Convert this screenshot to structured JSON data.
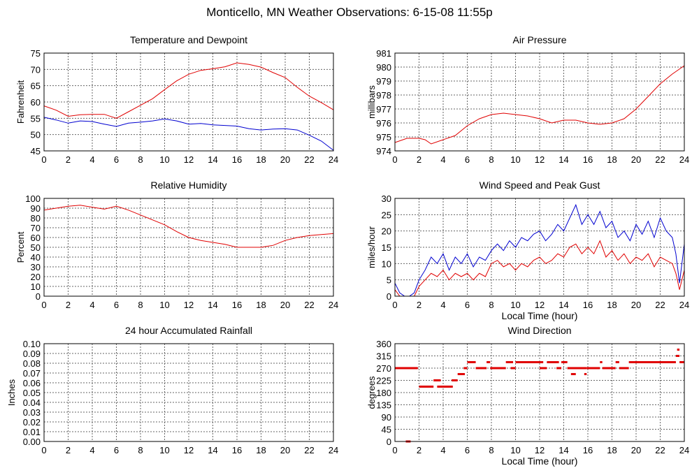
{
  "title": "Monticello, MN Weather Observations: 6-15-08 11:55p",
  "chart_data": [
    {
      "id": "temp",
      "type": "line",
      "title": "Temperature and Dewpoint",
      "xlabel": "",
      "ylabel": "Fahrenheit",
      "xlim": [
        0,
        24
      ],
      "ylim": [
        45,
        75
      ],
      "xticks": [
        "0",
        "2",
        "4",
        "6",
        "8",
        "10",
        "12",
        "14",
        "16",
        "18",
        "20",
        "22",
        "24"
      ],
      "yticks": [
        "45",
        "50",
        "55",
        "60",
        "65",
        "70",
        "75"
      ],
      "grid": true,
      "series": [
        {
          "color": "#e00000",
          "x": [
            0,
            1,
            2,
            3,
            4,
            5,
            6,
            7,
            8,
            9,
            10,
            11,
            12,
            13,
            14,
            15,
            16,
            17,
            18,
            19,
            20,
            21,
            22,
            23,
            24
          ],
          "y": [
            58.8,
            57.5,
            55.6,
            56.1,
            56.2,
            56.2,
            55.0,
            57.0,
            59.0,
            61.0,
            63.8,
            66.5,
            68.5,
            69.7,
            70.2,
            70.8,
            72.0,
            71.5,
            70.7,
            69.0,
            67.5,
            64.5,
            61.8,
            59.8,
            57.6
          ]
        },
        {
          "color": "#0000d0",
          "x": [
            0,
            1,
            2,
            3,
            4,
            5,
            6,
            7,
            8,
            9,
            10,
            11,
            12,
            13,
            14,
            15,
            16,
            17,
            18,
            19,
            20,
            21,
            22,
            23,
            24
          ],
          "y": [
            55.3,
            54.5,
            53.5,
            54.2,
            54.0,
            53.2,
            52.5,
            53.5,
            53.8,
            54.2,
            54.8,
            54.2,
            53.2,
            53.4,
            53.0,
            52.8,
            52.6,
            51.8,
            51.4,
            51.7,
            51.8,
            51.4,
            49.8,
            48.0,
            45.2
          ]
        }
      ]
    },
    {
      "id": "pressure",
      "type": "line",
      "title": "Air Pressure",
      "xlabel": "",
      "ylabel": "millibars",
      "xlim": [
        0,
        24
      ],
      "ylim": [
        974,
        981
      ],
      "xticks": [
        "0",
        "2",
        "4",
        "6",
        "8",
        "10",
        "12",
        "14",
        "16",
        "18",
        "20",
        "22",
        "24"
      ],
      "yticks": [
        "974",
        "975",
        "976",
        "977",
        "978",
        "979",
        "980",
        "981"
      ],
      "grid": true,
      "series": [
        {
          "color": "#e00000",
          "x": [
            0,
            1,
            2,
            2.5,
            3,
            4,
            5,
            6,
            7,
            8,
            9,
            10,
            11,
            12,
            13,
            14,
            15,
            16,
            17,
            18,
            19,
            20,
            21,
            22,
            23,
            24
          ],
          "y": [
            974.6,
            974.9,
            974.9,
            974.8,
            974.5,
            974.8,
            975.1,
            975.8,
            976.3,
            976.6,
            976.7,
            976.6,
            976.5,
            976.3,
            976.0,
            976.2,
            976.2,
            976.0,
            975.9,
            976.0,
            976.3,
            977.0,
            977.9,
            978.8,
            979.5,
            980.1
          ]
        }
      ]
    },
    {
      "id": "humidity",
      "type": "line",
      "title": "Relative Humidity",
      "xlabel": "",
      "ylabel": "Percent",
      "xlim": [
        0,
        24
      ],
      "ylim": [
        0,
        100
      ],
      "xticks": [
        "0",
        "2",
        "4",
        "6",
        "8",
        "10",
        "12",
        "14",
        "16",
        "18",
        "20",
        "22",
        "24"
      ],
      "yticks": [
        "0",
        "10",
        "20",
        "30",
        "40",
        "50",
        "60",
        "70",
        "80",
        "90",
        "100"
      ],
      "grid": true,
      "series": [
        {
          "color": "#e00000",
          "x": [
            0,
            1,
            2,
            3,
            4,
            5,
            6,
            7,
            8,
            9,
            10,
            11,
            12,
            13,
            14,
            15,
            16,
            17,
            18,
            19,
            20,
            21,
            22,
            23,
            24
          ],
          "y": [
            88,
            90,
            92,
            93,
            91,
            89,
            92,
            88,
            83,
            78,
            73,
            66,
            60,
            57,
            55,
            53,
            50,
            50,
            50,
            52,
            57,
            60,
            62,
            63,
            64
          ]
        }
      ]
    },
    {
      "id": "wind",
      "type": "line",
      "title": "Wind Speed and Peak Gust",
      "xlabel": "Local Time (hour)",
      "ylabel": "miles/hour",
      "xlim": [
        0,
        24
      ],
      "ylim": [
        0,
        30
      ],
      "xticks": [
        "0",
        "2",
        "4",
        "6",
        "8",
        "10",
        "12",
        "14",
        "16",
        "18",
        "20",
        "22",
        "24"
      ],
      "yticks": [
        "0",
        "5",
        "10",
        "15",
        "20",
        "25",
        "30"
      ],
      "grid": true,
      "series": [
        {
          "color": "#0000d0",
          "x": [
            0,
            0.4,
            0.8,
            1.2,
            1.6,
            2,
            2.5,
            3,
            3.5,
            4,
            4.5,
            5,
            5.5,
            6,
            6.5,
            7,
            7.5,
            8,
            8.5,
            9,
            9.5,
            10,
            10.5,
            11,
            11.5,
            12,
            12.5,
            13,
            13.5,
            14,
            14.5,
            15,
            15.5,
            16,
            16.5,
            17,
            17.5,
            18,
            18.5,
            19,
            19.5,
            20,
            20.5,
            21,
            21.5,
            22,
            22.5,
            23,
            23.3,
            23.6,
            24
          ],
          "y": [
            4,
            1,
            0,
            0,
            1,
            5,
            8,
            12,
            10,
            13,
            8,
            12,
            10,
            13,
            9,
            12,
            11,
            14,
            16,
            14,
            17,
            15,
            18,
            17,
            19,
            20,
            17,
            19,
            22,
            20,
            24,
            28,
            22,
            25,
            22,
            26,
            21,
            23,
            18,
            20,
            17,
            22,
            19,
            23,
            18,
            24,
            20,
            18,
            13,
            4,
            16
          ]
        },
        {
          "color": "#e00000",
          "x": [
            0,
            0.4,
            0.8,
            1.2,
            1.6,
            2,
            2.5,
            3,
            3.5,
            4,
            4.5,
            5,
            5.5,
            6,
            6.5,
            7,
            7.5,
            8,
            8.5,
            9,
            9.5,
            10,
            10.5,
            11,
            11.5,
            12,
            12.5,
            13,
            13.5,
            14,
            14.5,
            15,
            15.5,
            16,
            16.5,
            17,
            17.5,
            18,
            18.5,
            19,
            19.5,
            20,
            20.5,
            21,
            21.5,
            22,
            22.5,
            23,
            23.3,
            23.6,
            24
          ],
          "y": [
            2,
            0,
            0,
            0,
            0,
            3,
            5,
            7,
            6,
            8,
            5,
            7,
            6,
            7,
            5,
            7,
            6,
            10,
            11,
            9,
            10,
            8,
            10,
            9,
            11,
            12,
            10,
            11,
            13,
            12,
            15,
            16,
            13,
            15,
            13,
            17,
            12,
            14,
            11,
            13,
            10,
            12,
            11,
            13,
            9,
            12,
            11,
            10,
            7,
            2,
            8
          ]
        }
      ]
    },
    {
      "id": "rain",
      "type": "line",
      "title": "24 hour Accumulated Rainfall",
      "xlabel": "",
      "ylabel": "Inches",
      "xlim": [
        0,
        24
      ],
      "ylim": [
        0,
        0.1
      ],
      "xticks": [
        "0",
        "2",
        "4",
        "6",
        "8",
        "10",
        "12",
        "14",
        "16",
        "18",
        "20",
        "22",
        "24"
      ],
      "yticks": [
        "0.00",
        "0.01",
        "0.02",
        "0.03",
        "0.04",
        "0.05",
        "0.06",
        "0.07",
        "0.08",
        "0.09",
        "0.10"
      ],
      "grid": true,
      "series": [
        {
          "color": "#e00000",
          "x": [
            0,
            24
          ],
          "y": [
            0,
            0
          ]
        }
      ]
    },
    {
      "id": "direction",
      "type": "scatter",
      "title": "Wind Direction",
      "xlabel": "Local Time (hour)",
      "ylabel": "degrees",
      "xlim": [
        0,
        24
      ],
      "ylim": [
        0,
        360
      ],
      "xticks": [
        "0",
        "2",
        "4",
        "6",
        "8",
        "10",
        "12",
        "14",
        "16",
        "18",
        "20",
        "22",
        "24"
      ],
      "yticks": [
        "0",
        "45",
        "90",
        "135",
        "180",
        "225",
        "270",
        "315",
        "360"
      ],
      "grid": true,
      "series": [
        {
          "color": "#e00000",
          "segments": [
            {
              "x0": 0,
              "x1": 1.9,
              "y": 270
            },
            {
              "x0": 0.9,
              "x1": 1.3,
              "y": 0
            },
            {
              "x0": 2.0,
              "x1": 3.2,
              "y": 202
            },
            {
              "x0": 3.2,
              "x1": 3.8,
              "y": 225
            },
            {
              "x0": 3.5,
              "x1": 4.8,
              "y": 202
            },
            {
              "x0": 4.7,
              "x1": 5.2,
              "y": 225
            },
            {
              "x0": 5.2,
              "x1": 5.8,
              "y": 248
            },
            {
              "x0": 5.7,
              "x1": 6.0,
              "y": 270
            },
            {
              "x0": 6.0,
              "x1": 6.7,
              "y": 292
            },
            {
              "x0": 6.7,
              "x1": 7.6,
              "y": 270
            },
            {
              "x0": 7.6,
              "x1": 7.9,
              "y": 292
            },
            {
              "x0": 7.9,
              "x1": 9.2,
              "y": 270
            },
            {
              "x0": 9.2,
              "x1": 9.8,
              "y": 292
            },
            {
              "x0": 9.6,
              "x1": 10.0,
              "y": 270
            },
            {
              "x0": 10.0,
              "x1": 12.3,
              "y": 292
            },
            {
              "x0": 12.0,
              "x1": 12.6,
              "y": 270
            },
            {
              "x0": 12.6,
              "x1": 13.6,
              "y": 292
            },
            {
              "x0": 13.4,
              "x1": 13.8,
              "y": 270
            },
            {
              "x0": 13.8,
              "x1": 14.3,
              "y": 292
            },
            {
              "x0": 14.3,
              "x1": 15.9,
              "y": 270
            },
            {
              "x0": 14.6,
              "x1": 15.0,
              "y": 248
            },
            {
              "x0": 15.7,
              "x1": 15.9,
              "y": 248
            },
            {
              "x0": 15.9,
              "x1": 17.0,
              "y": 270
            },
            {
              "x0": 17.0,
              "x1": 17.2,
              "y": 292
            },
            {
              "x0": 17.2,
              "x1": 18.3,
              "y": 270
            },
            {
              "x0": 18.3,
              "x1": 18.6,
              "y": 292
            },
            {
              "x0": 18.6,
              "x1": 19.4,
              "y": 270
            },
            {
              "x0": 19.4,
              "x1": 23.3,
              "y": 292
            },
            {
              "x0": 23.3,
              "x1": 23.6,
              "y": 315
            },
            {
              "x0": 23.4,
              "x1": 23.6,
              "y": 338
            },
            {
              "x0": 23.6,
              "x1": 24.0,
              "y": 292
            }
          ]
        }
      ]
    }
  ]
}
